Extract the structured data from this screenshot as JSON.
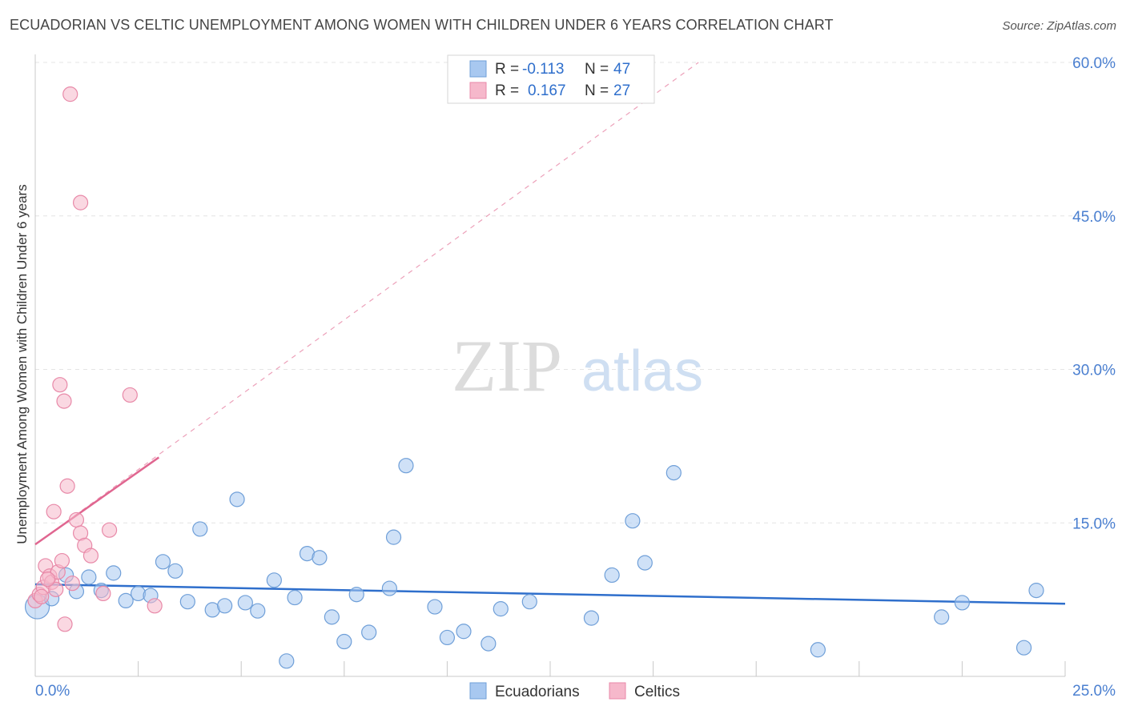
{
  "header": {
    "title": "ECUADORIAN VS CELTIC UNEMPLOYMENT AMONG WOMEN WITH CHILDREN UNDER 6 YEARS CORRELATION CHART",
    "source": "Source: ZipAtlas.com"
  },
  "watermark": {
    "zip": "ZIP",
    "atlas": "atlas"
  },
  "colors": {
    "blue_fill": "#a8c8f0",
    "blue_stroke": "#6f9fd8",
    "blue_line": "#2f6fcc",
    "pink_fill": "#f6b8cb",
    "pink_stroke": "#e889a8",
    "pink_line": "#e06690",
    "tick_label": "#4a7fd0"
  },
  "legend": {
    "rows": [
      {
        "r_label": "R =",
        "r_value": "-0.113",
        "n_label": "N =",
        "n_value": "47"
      },
      {
        "r_label": "R =",
        "r_value": "0.167",
        "n_label": "N =",
        "n_value": "27"
      }
    ]
  },
  "chart_data": {
    "type": "scatter",
    "title": "ECUADORIAN VS CELTIC UNEMPLOYMENT AMONG WOMEN WITH CHILDREN UNDER 6 YEARS CORRELATION CHART",
    "xlabel": "",
    "ylabel": "Unemployment Among Women with Children Under 6 years",
    "xlim": [
      0,
      25
    ],
    "ylim": [
      0,
      60
    ],
    "x_tick_labels": [
      "0.0%",
      "25.0%"
    ],
    "y_tick_labels": [
      "15.0%",
      "30.0%",
      "45.0%",
      "60.0%"
    ],
    "y_tick_values": [
      15,
      30,
      45,
      60
    ],
    "grid": true,
    "legend_position": "bottom-center",
    "series": [
      {
        "name": "Ecuadorians",
        "color": "#a8c8f0",
        "trend": {
          "x": [
            0,
            25
          ],
          "y": [
            9.0,
            7.1
          ]
        },
        "points": [
          {
            "x": 0.05,
            "y": 6.8,
            "big": true
          },
          {
            "x": 0.4,
            "y": 7.6
          },
          {
            "x": 0.75,
            "y": 9.9
          },
          {
            "x": 1.0,
            "y": 8.3
          },
          {
            "x": 1.3,
            "y": 9.7
          },
          {
            "x": 1.6,
            "y": 8.4
          },
          {
            "x": 1.9,
            "y": 10.1
          },
          {
            "x": 2.2,
            "y": 7.4
          },
          {
            "x": 2.5,
            "y": 8.1
          },
          {
            "x": 2.8,
            "y": 7.9
          },
          {
            "x": 3.1,
            "y": 11.2
          },
          {
            "x": 3.4,
            "y": 10.3
          },
          {
            "x": 3.7,
            "y": 7.3
          },
          {
            "x": 4.0,
            "y": 14.4
          },
          {
            "x": 4.3,
            "y": 6.5
          },
          {
            "x": 4.6,
            "y": 6.9
          },
          {
            "x": 4.9,
            "y": 17.3
          },
          {
            "x": 5.1,
            "y": 7.2
          },
          {
            "x": 5.4,
            "y": 6.4
          },
          {
            "x": 5.8,
            "y": 9.4
          },
          {
            "x": 6.1,
            "y": 1.5
          },
          {
            "x": 6.3,
            "y": 7.7
          },
          {
            "x": 6.6,
            "y": 12.0
          },
          {
            "x": 6.9,
            "y": 11.6
          },
          {
            "x": 7.2,
            "y": 5.8
          },
          {
            "x": 7.5,
            "y": 3.4
          },
          {
            "x": 7.8,
            "y": 8.0
          },
          {
            "x": 8.1,
            "y": 4.3
          },
          {
            "x": 8.6,
            "y": 8.6
          },
          {
            "x": 8.7,
            "y": 13.6
          },
          {
            "x": 9.0,
            "y": 20.6
          },
          {
            "x": 9.7,
            "y": 6.8
          },
          {
            "x": 10.0,
            "y": 3.8
          },
          {
            "x": 10.4,
            "y": 4.4
          },
          {
            "x": 11.0,
            "y": 3.2
          },
          {
            "x": 11.3,
            "y": 6.6
          },
          {
            "x": 12.0,
            "y": 7.3
          },
          {
            "x": 13.5,
            "y": 5.7
          },
          {
            "x": 14.0,
            "y": 9.9
          },
          {
            "x": 14.5,
            "y": 15.2
          },
          {
            "x": 14.8,
            "y": 11.1
          },
          {
            "x": 15.5,
            "y": 19.9
          },
          {
            "x": 19.0,
            "y": 2.6
          },
          {
            "x": 22.0,
            "y": 5.8
          },
          {
            "x": 22.5,
            "y": 7.2
          },
          {
            "x": 24.0,
            "y": 2.8
          },
          {
            "x": 24.3,
            "y": 8.4
          }
        ]
      },
      {
        "name": "Celtics",
        "color": "#f6b8cb",
        "trend": {
          "x": [
            0,
            3.0
          ],
          "y": [
            12.9,
            21.4
          ]
        },
        "trend_extended": {
          "x": [
            0,
            16.1
          ],
          "y": [
            12.9,
            60.0
          ]
        },
        "points": [
          {
            "x": 0.0,
            "y": 7.4
          },
          {
            "x": 0.1,
            "y": 8.0
          },
          {
            "x": 0.2,
            "y": 8.7
          },
          {
            "x": 0.25,
            "y": 10.8
          },
          {
            "x": 0.35,
            "y": 9.8
          },
          {
            "x": 0.4,
            "y": 9.2
          },
          {
            "x": 0.45,
            "y": 16.1
          },
          {
            "x": 0.5,
            "y": 8.5
          },
          {
            "x": 0.55,
            "y": 10.2
          },
          {
            "x": 0.6,
            "y": 28.5
          },
          {
            "x": 0.65,
            "y": 11.3
          },
          {
            "x": 0.7,
            "y": 26.9
          },
          {
            "x": 0.72,
            "y": 5.1
          },
          {
            "x": 0.78,
            "y": 18.6
          },
          {
            "x": 0.85,
            "y": 56.9
          },
          {
            "x": 0.9,
            "y": 9.1
          },
          {
            "x": 1.0,
            "y": 15.3
          },
          {
            "x": 1.1,
            "y": 14.0
          },
          {
            "x": 1.1,
            "y": 46.3
          },
          {
            "x": 1.2,
            "y": 12.8
          },
          {
            "x": 1.35,
            "y": 11.8
          },
          {
            "x": 1.65,
            "y": 8.1
          },
          {
            "x": 1.8,
            "y": 14.3
          },
          {
            "x": 2.3,
            "y": 27.5
          },
          {
            "x": 2.9,
            "y": 6.9
          },
          {
            "x": 0.3,
            "y": 9.5
          },
          {
            "x": 0.15,
            "y": 7.8
          }
        ]
      }
    ]
  }
}
